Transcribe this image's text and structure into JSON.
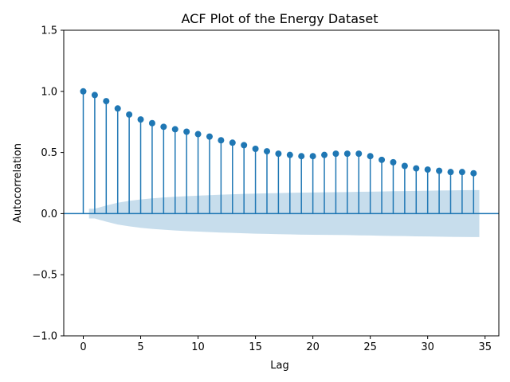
{
  "chart_data": {
    "type": "scatter",
    "title": "ACF Plot of the Energy Dataset",
    "xlabel": "Lag",
    "ylabel": "Autocorrelation",
    "xlim": [
      -1.7,
      36.2
    ],
    "ylim": [
      -1.0,
      1.5
    ],
    "xticks": [
      0,
      5,
      10,
      15,
      20,
      25,
      30,
      35
    ],
    "yticks": [
      -1.0,
      -0.5,
      0.0,
      0.5,
      1.0,
      1.5
    ],
    "xtick_labels": [
      "0",
      "5",
      "10",
      "15",
      "20",
      "25",
      "30",
      "35"
    ],
    "ytick_labels": [
      "−1.0",
      "−0.5",
      "0.0",
      "0.5",
      "1.0",
      "1.5"
    ],
    "grid": false,
    "series": [
      {
        "x": [
          0,
          1,
          2,
          3,
          4,
          5,
          6,
          7,
          8,
          9,
          10,
          11,
          12,
          13,
          14,
          15,
          16,
          17,
          18,
          19,
          20,
          21,
          22,
          23,
          24,
          25,
          26,
          27,
          28,
          29,
          30,
          31,
          32,
          33,
          34
        ],
        "values": [
          1.0,
          0.97,
          0.92,
          0.86,
          0.81,
          0.77,
          0.74,
          0.71,
          0.69,
          0.67,
          0.65,
          0.63,
          0.6,
          0.58,
          0.56,
          0.53,
          0.51,
          0.49,
          0.48,
          0.47,
          0.47,
          0.48,
          0.49,
          0.49,
          0.49,
          0.47,
          0.44,
          0.42,
          0.39,
          0.37,
          0.36,
          0.35,
          0.34,
          0.34,
          0.33
        ],
        "color": "#1f77b4"
      }
    ],
    "confidence_band": {
      "x": [
        0.5,
        1,
        2,
        3,
        4,
        5,
        6,
        7,
        8,
        9,
        10,
        11,
        12,
        13,
        14,
        15,
        16,
        17,
        18,
        19,
        20,
        21,
        22,
        23,
        24,
        25,
        26,
        27,
        28,
        29,
        30,
        31,
        32,
        33,
        34,
        34.5
      ],
      "upper": [
        0.04,
        0.04,
        0.066,
        0.089,
        0.104,
        0.116,
        0.125,
        0.132,
        0.138,
        0.143,
        0.147,
        0.151,
        0.155,
        0.158,
        0.161,
        0.164,
        0.166,
        0.168,
        0.17,
        0.172,
        0.173,
        0.174,
        0.175,
        0.176,
        0.178,
        0.179,
        0.181,
        0.183,
        0.184,
        0.186,
        0.187,
        0.189,
        0.19,
        0.191,
        0.192,
        0.192
      ],
      "color": "#1f77b4",
      "opacity": 0.25
    },
    "zero_line_color": "#1f77b4"
  }
}
